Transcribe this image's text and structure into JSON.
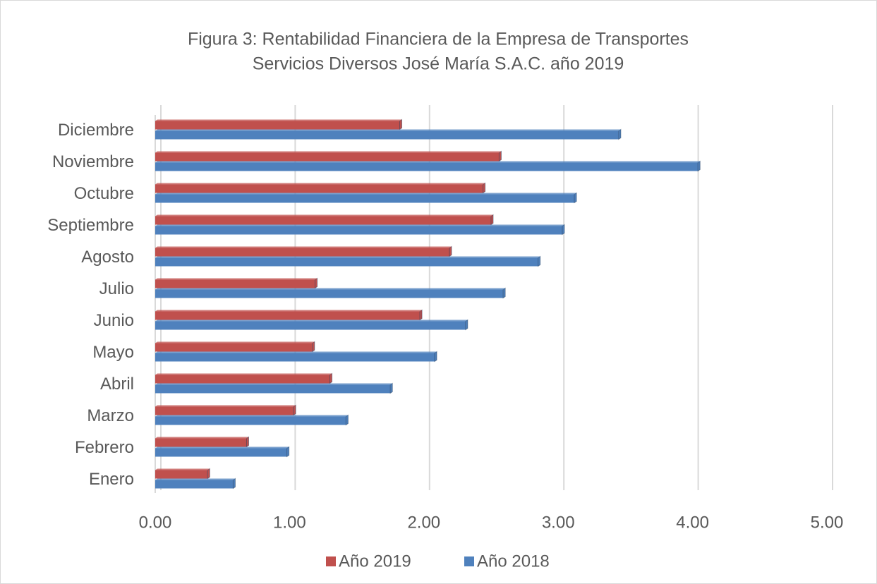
{
  "chart_data": {
    "type": "hbar",
    "title": [
      "Figura 3: Rentabilidad Financiera de la Empresa de Transportes",
      "Servicios Diversos José María S.A.C. año 2019"
    ],
    "categories": [
      "Enero",
      "Febrero",
      "Marzo",
      "Abril",
      "Mayo",
      "Junio",
      "Julio",
      "Agosto",
      "Septiembre",
      "Octubre",
      "Noviembre",
      "Diciembre"
    ],
    "series": [
      {
        "name": "Año 2019",
        "color": "#c0504d",
        "values": [
          0.39,
          0.68,
          1.03,
          1.3,
          1.17,
          1.97,
          1.19,
          2.19,
          2.5,
          2.44,
          2.56,
          1.82
        ]
      },
      {
        "name": "Año 2018",
        "color": "#4f81bd",
        "values": [
          0.58,
          0.98,
          1.42,
          1.75,
          2.08,
          2.31,
          2.59,
          2.85,
          3.03,
          3.12,
          4.04,
          3.45
        ]
      }
    ],
    "xlim": [
      0,
      5
    ],
    "xticks": [
      {
        "value": 0,
        "label": "0.00"
      },
      {
        "value": 1,
        "label": "1.00"
      },
      {
        "value": 2,
        "label": "2.00"
      },
      {
        "value": 3,
        "label": "3.00"
      },
      {
        "value": 4,
        "label": "4.00"
      },
      {
        "value": 5,
        "label": "5.00"
      }
    ],
    "grid": true,
    "legend": "bottom"
  }
}
